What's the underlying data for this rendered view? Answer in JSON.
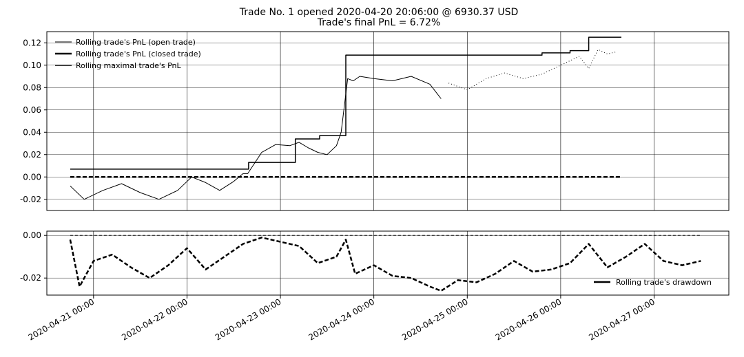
{
  "title_line1": "Trade No. 1 opened 2020-04-20 20:06:00 @ 6930.37 USD",
  "title_line2": "Trade's final PnL = 6.72%",
  "chart_data": [
    {
      "type": "line",
      "ylim": [
        -0.03,
        0.13
      ],
      "yticks": [
        "0.12",
        "0.10",
        "0.08",
        "0.06",
        "0.04",
        "0.02",
        "0.00",
        "-0.02"
      ],
      "ytick_values": [
        0.12,
        0.1,
        0.08,
        0.06,
        0.04,
        0.02,
        0.0,
        -0.02
      ],
      "grid": true,
      "legend_position": "top-left",
      "series": [
        {
          "name": "Rolling trade's PnL (open trade)",
          "style": "thin",
          "x": [
            0.75,
            0.9,
            1.1,
            1.3,
            1.5,
            1.7,
            1.9,
            2.05,
            2.2,
            2.35,
            2.5,
            2.6,
            2.65,
            2.8,
            2.95,
            3.1,
            3.2,
            3.3,
            3.4,
            3.5,
            3.6,
            3.65,
            3.72,
            3.78,
            3.85,
            4.0,
            4.2,
            4.4,
            4.6,
            4.72
          ],
          "y": [
            -0.008,
            -0.02,
            -0.012,
            -0.006,
            -0.014,
            -0.02,
            -0.012,
            0.0,
            -0.005,
            -0.012,
            -0.004,
            0.003,
            0.003,
            0.022,
            0.029,
            0.028,
            0.031,
            0.026,
            0.022,
            0.02,
            0.028,
            0.04,
            0.088,
            0.086,
            0.09,
            0.088,
            0.086,
            0.09,
            0.083,
            0.07
          ]
        },
        {
          "name": "Rolling trade's PnL (closed trade)",
          "style": "thick",
          "x": [
            0.75,
            1.5,
            2.5,
            3.0,
            3.5,
            4.0,
            4.5,
            5.0,
            5.5,
            6.0,
            6.5,
            6.65
          ],
          "y": [
            0.0,
            0.0,
            0.0,
            0.0,
            0.0,
            0.0,
            0.0,
            0.0,
            0.0,
            0.0,
            0.0,
            0.0
          ]
        },
        {
          "name": "Rolling maximal trade's PnL",
          "style": "medium",
          "x": [
            0.75,
            1.5,
            2.5,
            2.66,
            2.66,
            3.16,
            3.16,
            3.42,
            3.42,
            3.7,
            3.7,
            4.4,
            5.0,
            5.8,
            5.8,
            6.1,
            6.1,
            6.3,
            6.3,
            6.42,
            6.42,
            6.65
          ],
          "y": [
            0.007,
            0.007,
            0.007,
            0.007,
            0.013,
            0.013,
            0.034,
            0.034,
            0.037,
            0.037,
            0.109,
            0.109,
            0.109,
            0.109,
            0.111,
            0.111,
            0.113,
            0.113,
            0.125,
            0.125,
            0.125,
            0.125
          ]
        },
        {
          "name": "",
          "style": "dotted",
          "x": [
            4.8,
            5.0,
            5.2,
            5.4,
            5.6,
            5.8,
            6.0,
            6.2,
            6.3,
            6.4,
            6.5,
            6.6
          ],
          "y": [
            0.084,
            0.078,
            0.088,
            0.093,
            0.088,
            0.092,
            0.1,
            0.108,
            0.097,
            0.114,
            0.11,
            0.112
          ]
        }
      ]
    },
    {
      "type": "line",
      "ylim": [
        -0.028,
        0.002
      ],
      "yticks": [
        "0.00",
        "-0.02"
      ],
      "ytick_values": [
        0.0,
        -0.02
      ],
      "grid": true,
      "legend_position": "bottom-right",
      "xticks": [
        "2020-04-21 00:00",
        "2020-04-22 00:00",
        "2020-04-23 00:00",
        "2020-04-24 00:00",
        "2020-04-25 00:00",
        "2020-04-26 00:00",
        "2020-04-27 00:00"
      ],
      "xtick_values": [
        1,
        2,
        3,
        4,
        5,
        6,
        7
      ],
      "series": [
        {
          "name": "Rolling trade's drawdown",
          "style": "thick",
          "x": [
            0.75,
            0.85,
            1.0,
            1.2,
            1.4,
            1.6,
            1.8,
            2.0,
            2.2,
            2.4,
            2.6,
            2.8,
            3.0,
            3.2,
            3.4,
            3.6,
            3.7,
            3.8,
            4.0,
            4.2,
            4.4,
            4.6,
            4.72,
            4.9,
            5.1,
            5.3,
            5.5,
            5.7,
            5.9,
            6.1,
            6.3,
            6.5,
            6.7,
            6.9,
            7.1,
            7.3,
            7.5
          ],
          "y": [
            -0.002,
            -0.024,
            -0.012,
            -0.009,
            -0.015,
            -0.02,
            -0.014,
            -0.006,
            -0.016,
            -0.01,
            -0.004,
            -0.001,
            -0.003,
            -0.005,
            -0.013,
            -0.01,
            -0.002,
            -0.018,
            -0.014,
            -0.019,
            -0.02,
            -0.024,
            -0.026,
            -0.021,
            -0.022,
            -0.018,
            -0.012,
            -0.017,
            -0.016,
            -0.013,
            -0.004,
            -0.015,
            -0.01,
            -0.004,
            -0.012,
            -0.014,
            -0.012
          ]
        },
        {
          "name": "",
          "style": "dashed",
          "x": [
            0.75,
            7.5
          ],
          "y": [
            0.0,
            0.0
          ]
        }
      ]
    }
  ]
}
